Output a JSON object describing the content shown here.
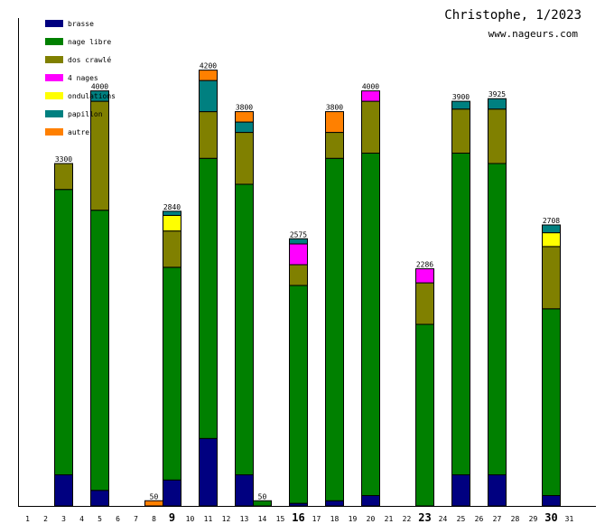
{
  "header": {
    "title": "Christophe, 1/2023",
    "site": "www.nageurs.com"
  },
  "chart_data": {
    "type": "bar",
    "stacked": true,
    "title": "Christophe, 1/2023",
    "xlabel": "",
    "ylabel": "",
    "ylim": [
      0,
      4700
    ],
    "grid": false,
    "legend_position": "top-left",
    "categories": [
      "1",
      "2",
      "3",
      "4",
      "5",
      "6",
      "7",
      "8",
      "9",
      "10",
      "11",
      "12",
      "13",
      "14",
      "15",
      "16",
      "17",
      "18",
      "19",
      "20",
      "21",
      "22",
      "23",
      "24",
      "25",
      "26",
      "27",
      "28",
      "29",
      "30",
      "31"
    ],
    "bold_categories": [
      "9",
      "16",
      "23",
      "30"
    ],
    "series": [
      {
        "name": "brasse",
        "color": "#000080",
        "values": [
          0,
          0,
          300,
          0,
          150,
          0,
          0,
          0,
          250,
          0,
          650,
          0,
          300,
          0,
          0,
          25,
          0,
          50,
          0,
          100,
          0,
          0,
          0,
          0,
          300,
          0,
          300,
          0,
          0,
          100,
          0
        ]
      },
      {
        "name": "nage libre",
        "color": "#008000",
        "values": [
          0,
          0,
          2750,
          0,
          2700,
          0,
          0,
          0,
          2050,
          0,
          2700,
          0,
          2800,
          50,
          0,
          2100,
          0,
          3300,
          0,
          3300,
          0,
          0,
          1750,
          0,
          3100,
          0,
          3000,
          0,
          0,
          1800,
          0
        ]
      },
      {
        "name": "dos crawlé",
        "color": "#808000",
        "values": [
          0,
          0,
          250,
          0,
          1050,
          0,
          0,
          0,
          350,
          0,
          450,
          0,
          500,
          0,
          0,
          200,
          0,
          250,
          0,
          500,
          0,
          0,
          400,
          0,
          425,
          0,
          525,
          0,
          0,
          600,
          0
        ]
      },
      {
        "name": "4 nages",
        "color": "#ff00ff",
        "values": [
          0,
          0,
          0,
          0,
          0,
          0,
          0,
          0,
          0,
          0,
          0,
          0,
          0,
          0,
          0,
          200,
          0,
          0,
          0,
          100,
          0,
          0,
          136,
          0,
          0,
          0,
          0,
          0,
          0,
          0,
          0
        ]
      },
      {
        "name": "ondulations",
        "color": "#ffff00",
        "values": [
          0,
          0,
          0,
          0,
          0,
          0,
          0,
          0,
          150,
          0,
          0,
          0,
          0,
          0,
          0,
          0,
          0,
          0,
          0,
          0,
          0,
          0,
          0,
          0,
          0,
          0,
          0,
          0,
          0,
          133,
          0
        ]
      },
      {
        "name": "papillon",
        "color": "#008080",
        "values": [
          0,
          0,
          0,
          0,
          100,
          0,
          0,
          0,
          40,
          0,
          300,
          0,
          100,
          0,
          0,
          50,
          0,
          0,
          0,
          0,
          0,
          0,
          0,
          0,
          75,
          0,
          100,
          0,
          0,
          75,
          0
        ]
      },
      {
        "name": "autre",
        "color": "#ff8000",
        "values": [
          0,
          0,
          0,
          0,
          0,
          0,
          0,
          50,
          0,
          0,
          100,
          0,
          100,
          0,
          0,
          0,
          0,
          200,
          0,
          0,
          0,
          0,
          0,
          0,
          0,
          0,
          0,
          0,
          0,
          0,
          0
        ]
      }
    ],
    "totals": [
      0,
      0,
      3300,
      0,
      4000,
      0,
      0,
      50,
      2840,
      0,
      4200,
      0,
      3800,
      50,
      0,
      2575,
      0,
      3800,
      0,
      4000,
      0,
      0,
      2286,
      0,
      3900,
      0,
      3925,
      0,
      0,
      2708,
      0
    ]
  }
}
